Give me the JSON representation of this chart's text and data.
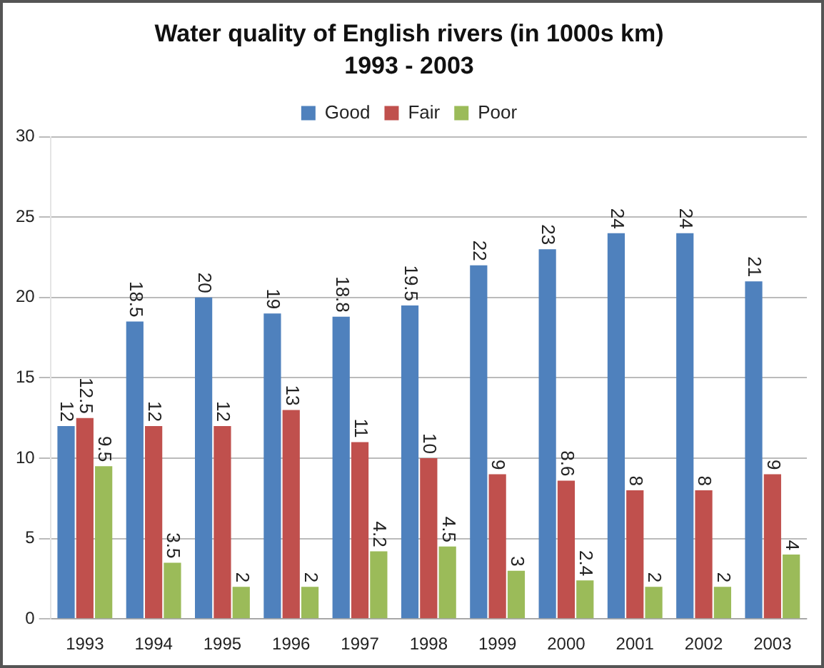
{
  "chart_data": {
    "type": "bar",
    "title": "Water quality of English rivers (in 1000s km)",
    "subtitle": "1993 - 2003",
    "categories": [
      "1993",
      "1994",
      "1995",
      "1996",
      "1997",
      "1998",
      "1999",
      "2000",
      "2001",
      "2002",
      "2003"
    ],
    "series": [
      {
        "name": "Good",
        "color": "#4f81bd",
        "values": [
          12,
          18.5,
          20,
          19,
          18.8,
          19.5,
          22,
          23,
          24,
          24,
          21
        ]
      },
      {
        "name": "Fair",
        "color": "#c0504d",
        "values": [
          12.5,
          12,
          12,
          13,
          11,
          10,
          9,
          8.6,
          8,
          8,
          9
        ]
      },
      {
        "name": "Poor",
        "color": "#9bbb59",
        "values": [
          9.5,
          3.5,
          2,
          2,
          4.2,
          4.5,
          3,
          2.4,
          2,
          2,
          4
        ]
      }
    ],
    "ylim": [
      0,
      30
    ],
    "yticks": [
      0,
      5,
      10,
      15,
      20,
      25,
      30
    ],
    "grid": "y",
    "legend": "top",
    "data_labels": true
  }
}
